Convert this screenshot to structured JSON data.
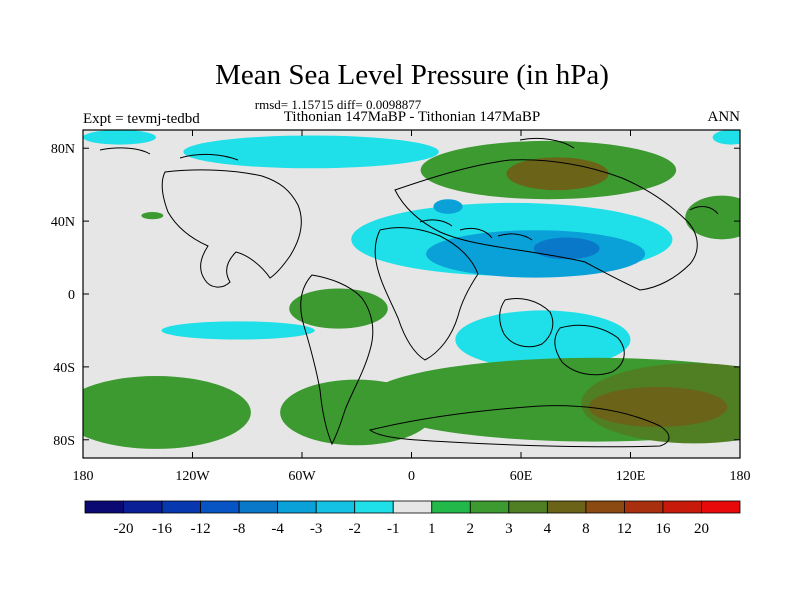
{
  "chart_data": {
    "type": "heatmap",
    "title": "Mean Sea Level Pressure (in hPa)",
    "stats_label": "rmsd= 1.15715 diff= 0.0098877",
    "left_label": "Expt = tevmj-tedbd",
    "center_label": "Tithonian 147MaBP - Tithonian 147MaBP",
    "right_label": "ANN",
    "xlim": [
      -180,
      180
    ],
    "ylim": [
      -90,
      90
    ],
    "x_ticks": [
      {
        "value": -180,
        "label": "180"
      },
      {
        "value": -120,
        "label": "120W"
      },
      {
        "value": -60,
        "label": "60W"
      },
      {
        "value": 0,
        "label": "0"
      },
      {
        "value": 60,
        "label": "60E"
      },
      {
        "value": 120,
        "label": "120E"
      },
      {
        "value": 180,
        "label": "180"
      }
    ],
    "y_ticks": [
      {
        "value": 80,
        "label": "80N"
      },
      {
        "value": 40,
        "label": "40N"
      },
      {
        "value": 0,
        "label": "0"
      },
      {
        "value": -40,
        "label": "40S"
      },
      {
        "value": -80,
        "label": "80S"
      }
    ],
    "colorbar": {
      "levels": [
        -20,
        -16,
        -12,
        -8,
        -4,
        -3,
        -2,
        -1,
        1,
        2,
        3,
        4,
        8,
        12,
        16,
        20
      ],
      "labels": [
        "-20",
        "-16",
        "-12",
        "-8",
        "-4",
        "-3",
        "-2",
        "-1",
        "1",
        "2",
        "3",
        "4",
        "8",
        "12",
        "16",
        "20"
      ],
      "colors": [
        "#0b0a73",
        "#0a1f96",
        "#0838b0",
        "#0754c4",
        "#0a78c8",
        "#0aa0d8",
        "#14c3e3",
        "#1fe0e8",
        "#e6e6e6",
        "#22b84a",
        "#3c9a30",
        "#4f7f22",
        "#6b6318",
        "#8a4a12",
        "#a8300e",
        "#c81a0a",
        "#e80a0a"
      ]
    },
    "field_regions": [
      {
        "lon": 75,
        "lat": 68,
        "rx": 70,
        "ry": 16,
        "level": 2
      },
      {
        "lon": 80,
        "lat": 66,
        "rx": 28,
        "ry": 9,
        "level": 4
      },
      {
        "lon": 170,
        "lat": 42,
        "rx": 20,
        "ry": 12,
        "level": 2
      },
      {
        "lon": -142,
        "lat": 43,
        "rx": 6,
        "ry": 2,
        "level": 2
      },
      {
        "lon": -55,
        "lat": 78,
        "rx": 70,
        "ry": 9,
        "level": -1
      },
      {
        "lon": -160,
        "lat": 86,
        "rx": 20,
        "ry": 4,
        "level": -1
      },
      {
        "lon": 175,
        "lat": 86,
        "rx": 10,
        "ry": 4,
        "level": -1
      },
      {
        "lon": 55,
        "lat": 30,
        "rx": 88,
        "ry": 20,
        "level": -1
      },
      {
        "lon": 68,
        "lat": 22,
        "rx": 60,
        "ry": 13,
        "level": -3
      },
      {
        "lon": 85,
        "lat": 25,
        "rx": 18,
        "ry": 6,
        "level": -4
      },
      {
        "lon": 20,
        "lat": 48,
        "rx": 8,
        "ry": 4,
        "level": -3
      },
      {
        "lon": -40,
        "lat": -8,
        "rx": 27,
        "ry": 11,
        "level": 2
      },
      {
        "lon": 72,
        "lat": -25,
        "rx": 48,
        "ry": 16,
        "level": -1
      },
      {
        "lon": -95,
        "lat": -20,
        "rx": 42,
        "ry": 5,
        "level": -1
      },
      {
        "lon": 100,
        "lat": -58,
        "rx": 125,
        "ry": 23,
        "level": 2
      },
      {
        "lon": 155,
        "lat": -60,
        "rx": 62,
        "ry": 22,
        "level": 3
      },
      {
        "lon": 135,
        "lat": -62,
        "rx": 38,
        "ry": 11,
        "level": 4
      },
      {
        "lon": -140,
        "lat": -65,
        "rx": 52,
        "ry": 20,
        "level": 2
      },
      {
        "lon": -30,
        "lat": -65,
        "rx": 42,
        "ry": 18,
        "level": 2
      }
    ]
  }
}
